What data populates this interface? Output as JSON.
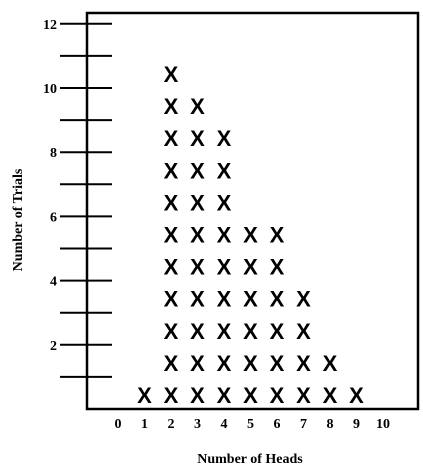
{
  "chart_data": {
    "type": "dot_plot",
    "title": "",
    "xlabel": "Number of Heads",
    "ylabel": "Number of Trials",
    "marker": "X",
    "x_ticks": [
      "0",
      "1",
      "2",
      "3",
      "4",
      "5",
      "6",
      "7",
      "8",
      "9",
      "10"
    ],
    "y_ticks": [
      "2",
      "4",
      "6",
      "8",
      "10",
      "12"
    ],
    "ylim": [
      0,
      12
    ],
    "grid": false,
    "categories": [
      0,
      1,
      2,
      3,
      4,
      5,
      6,
      7,
      8,
      9,
      10
    ],
    "values": [
      0,
      1,
      11,
      10,
      9,
      6,
      6,
      4,
      2,
      1,
      0
    ]
  }
}
